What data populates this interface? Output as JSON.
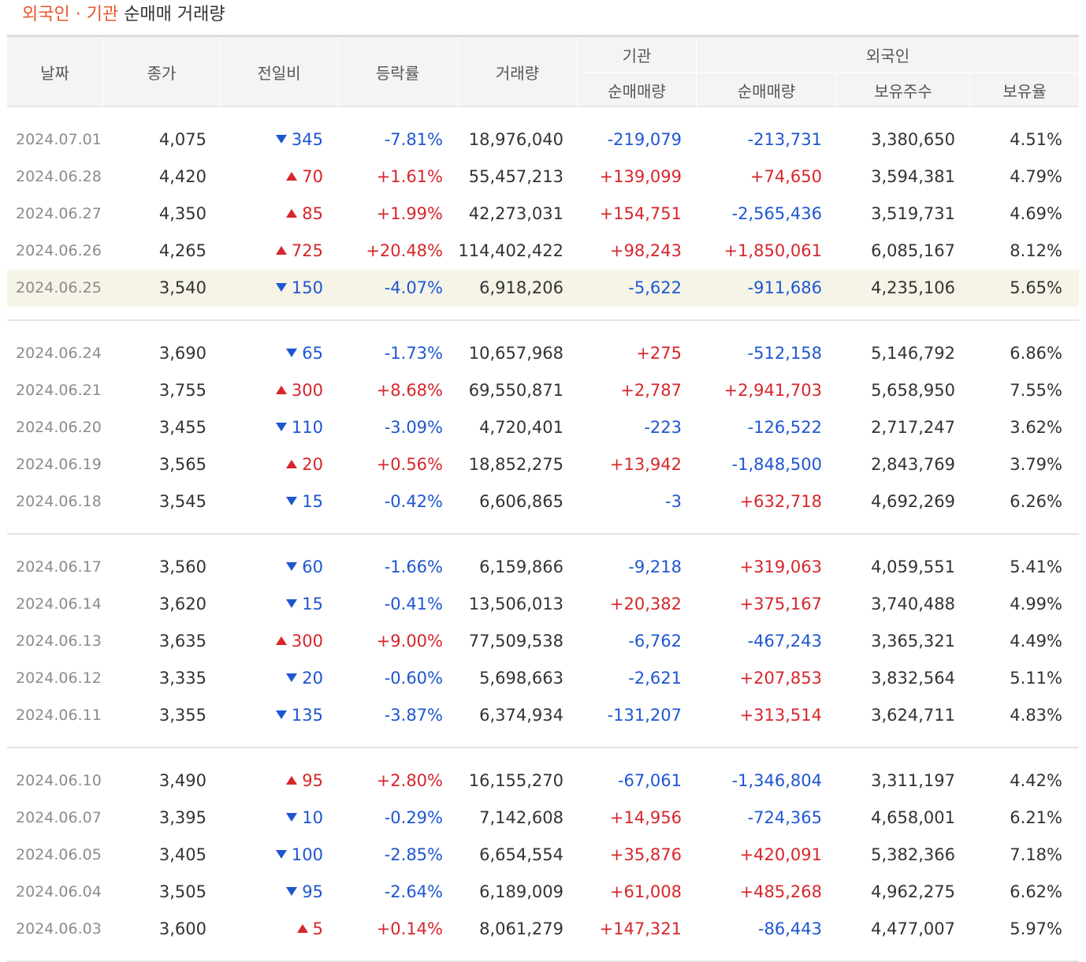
{
  "title": {
    "accent": "외국인 · 기관",
    "rest": "순매매 거래량"
  },
  "headers": {
    "date": "날짜",
    "close": "종가",
    "change": "전일비",
    "rate": "등락률",
    "volume": "거래량",
    "inst_group": "기관",
    "inst_net": "순매매량",
    "foreign_group": "외국인",
    "foreign_net": "순매매량",
    "foreign_shares": "보유주수",
    "foreign_ratio": "보유율"
  },
  "colors": {
    "up": "#d6262b",
    "down": "#1e56d2",
    "accent": "#e8562a",
    "highlight_row": "#f5f4e7"
  },
  "groups": [
    {
      "rows": [
        {
          "date": "2024.07.01",
          "close": "4,075",
          "change": "345",
          "dir": "dn",
          "rate": "-7.81%",
          "volume": "18,976,040",
          "inst": "-219,079",
          "foreign": "-213,731",
          "shares": "3,380,650",
          "ratio": "4.51%"
        },
        {
          "date": "2024.06.28",
          "close": "4,420",
          "change": "70",
          "dir": "up",
          "rate": "+1.61%",
          "volume": "55,457,213",
          "inst": "+139,099",
          "foreign": "+74,650",
          "shares": "3,594,381",
          "ratio": "4.79%"
        },
        {
          "date": "2024.06.27",
          "close": "4,350",
          "change": "85",
          "dir": "up",
          "rate": "+1.99%",
          "volume": "42,273,031",
          "inst": "+154,751",
          "foreign": "-2,565,436",
          "shares": "3,519,731",
          "ratio": "4.69%"
        },
        {
          "date": "2024.06.26",
          "close": "4,265",
          "change": "725",
          "dir": "up",
          "rate": "+20.48%",
          "volume": "114,402,422",
          "inst": "+98,243",
          "foreign": "+1,850,061",
          "shares": "6,085,167",
          "ratio": "8.12%"
        },
        {
          "date": "2024.06.25",
          "close": "3,540",
          "change": "150",
          "dir": "dn",
          "rate": "-4.07%",
          "volume": "6,918,206",
          "inst": "-5,622",
          "foreign": "-911,686",
          "shares": "4,235,106",
          "ratio": "5.65%",
          "highlight": true
        }
      ]
    },
    {
      "rows": [
        {
          "date": "2024.06.24",
          "close": "3,690",
          "change": "65",
          "dir": "dn",
          "rate": "-1.73%",
          "volume": "10,657,968",
          "inst": "+275",
          "foreign": "-512,158",
          "shares": "5,146,792",
          "ratio": "6.86%"
        },
        {
          "date": "2024.06.21",
          "close": "3,755",
          "change": "300",
          "dir": "up",
          "rate": "+8.68%",
          "volume": "69,550,871",
          "inst": "+2,787",
          "foreign": "+2,941,703",
          "shares": "5,658,950",
          "ratio": "7.55%"
        },
        {
          "date": "2024.06.20",
          "close": "3,455",
          "change": "110",
          "dir": "dn",
          "rate": "-3.09%",
          "volume": "4,720,401",
          "inst": "-223",
          "foreign": "-126,522",
          "shares": "2,717,247",
          "ratio": "3.62%"
        },
        {
          "date": "2024.06.19",
          "close": "3,565",
          "change": "20",
          "dir": "up",
          "rate": "+0.56%",
          "volume": "18,852,275",
          "inst": "+13,942",
          "foreign": "-1,848,500",
          "shares": "2,843,769",
          "ratio": "3.79%"
        },
        {
          "date": "2024.06.18",
          "close": "3,545",
          "change": "15",
          "dir": "dn",
          "rate": "-0.42%",
          "volume": "6,606,865",
          "inst": "-3",
          "foreign": "+632,718",
          "shares": "4,692,269",
          "ratio": "6.26%"
        }
      ]
    },
    {
      "rows": [
        {
          "date": "2024.06.17",
          "close": "3,560",
          "change": "60",
          "dir": "dn",
          "rate": "-1.66%",
          "volume": "6,159,866",
          "inst": "-9,218",
          "foreign": "+319,063",
          "shares": "4,059,551",
          "ratio": "5.41%"
        },
        {
          "date": "2024.06.14",
          "close": "3,620",
          "change": "15",
          "dir": "dn",
          "rate": "-0.41%",
          "volume": "13,506,013",
          "inst": "+20,382",
          "foreign": "+375,167",
          "shares": "3,740,488",
          "ratio": "4.99%"
        },
        {
          "date": "2024.06.13",
          "close": "3,635",
          "change": "300",
          "dir": "up",
          "rate": "+9.00%",
          "volume": "77,509,538",
          "inst": "-6,762",
          "foreign": "-467,243",
          "shares": "3,365,321",
          "ratio": "4.49%"
        },
        {
          "date": "2024.06.12",
          "close": "3,335",
          "change": "20",
          "dir": "dn",
          "rate": "-0.60%",
          "volume": "5,698,663",
          "inst": "-2,621",
          "foreign": "+207,853",
          "shares": "3,832,564",
          "ratio": "5.11%"
        },
        {
          "date": "2024.06.11",
          "close": "3,355",
          "change": "135",
          "dir": "dn",
          "rate": "-3.87%",
          "volume": "6,374,934",
          "inst": "-131,207",
          "foreign": "+313,514",
          "shares": "3,624,711",
          "ratio": "4.83%"
        }
      ]
    },
    {
      "rows": [
        {
          "date": "2024.06.10",
          "close": "3,490",
          "change": "95",
          "dir": "up",
          "rate": "+2.80%",
          "volume": "16,155,270",
          "inst": "-67,061",
          "foreign": "-1,346,804",
          "shares": "3,311,197",
          "ratio": "4.42%"
        },
        {
          "date": "2024.06.07",
          "close": "3,395",
          "change": "10",
          "dir": "dn",
          "rate": "-0.29%",
          "volume": "7,142,608",
          "inst": "+14,956",
          "foreign": "-724,365",
          "shares": "4,658,001",
          "ratio": "6.21%"
        },
        {
          "date": "2024.06.05",
          "close": "3,405",
          "change": "100",
          "dir": "dn",
          "rate": "-2.85%",
          "volume": "6,654,554",
          "inst": "+35,876",
          "foreign": "+420,091",
          "shares": "5,382,366",
          "ratio": "7.18%"
        },
        {
          "date": "2024.06.04",
          "close": "3,505",
          "change": "95",
          "dir": "dn",
          "rate": "-2.64%",
          "volume": "6,189,009",
          "inst": "+61,008",
          "foreign": "+485,268",
          "shares": "4,962,275",
          "ratio": "6.62%"
        },
        {
          "date": "2024.06.03",
          "close": "3,600",
          "change": "5",
          "dir": "up",
          "rate": "+0.14%",
          "volume": "8,061,279",
          "inst": "+147,321",
          "foreign": "-86,443",
          "shares": "4,477,007",
          "ratio": "5.97%"
        }
      ]
    }
  ]
}
